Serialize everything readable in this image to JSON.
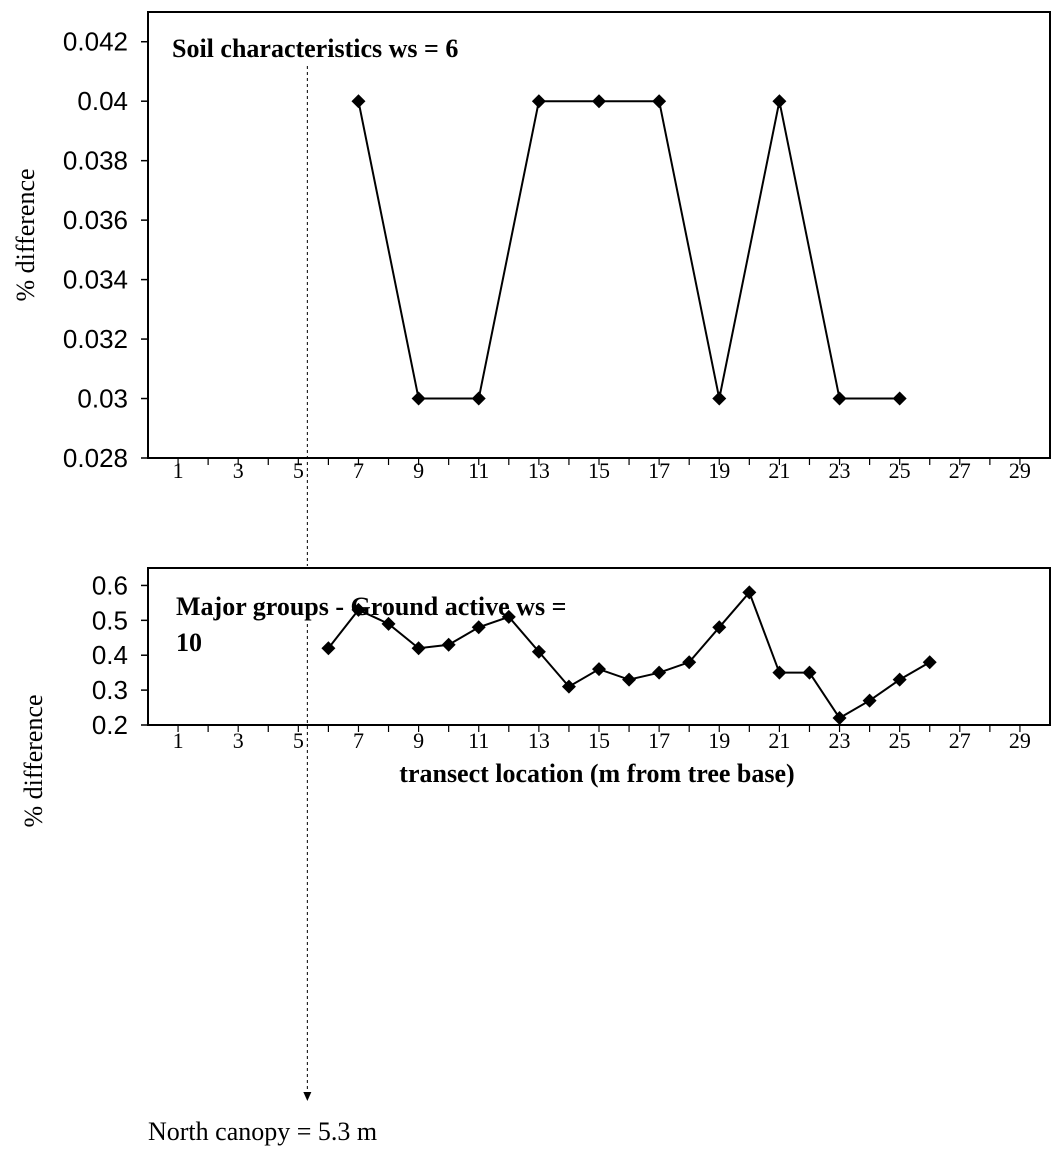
{
  "chart_data": [
    {
      "type": "line",
      "title": "Soil characteristics ws = 6",
      "ylabel": "% difference",
      "xlabel": "",
      "xlim": [
        0,
        30
      ],
      "ylim": [
        0.028,
        0.043
      ],
      "yticks": [
        "0.028",
        "0.03",
        "0.032",
        "0.034",
        "0.036",
        "0.038",
        "0.04",
        "0.042"
      ],
      "xticks": [
        "1",
        "3",
        "5",
        "7",
        "9",
        "11",
        "13",
        "15",
        "17",
        "19",
        "21",
        "23",
        "25",
        "27",
        "29"
      ],
      "series": [
        {
          "x": [
            7,
            9,
            11,
            13,
            15,
            17,
            19,
            21,
            23,
            25
          ],
          "values": [
            0.04,
            0.03,
            0.03,
            0.04,
            0.04,
            0.04,
            0.03,
            0.04,
            0.03,
            0.03
          ]
        }
      ],
      "grid": false,
      "marker": "diamond",
      "color": "#000000"
    },
    {
      "type": "line",
      "title": "Major groups - Ground active  ws = 10",
      "ylabel": "% difference",
      "xlabel": "transect location (m from tree base)",
      "xlim": [
        0,
        30
      ],
      "ylim": [
        0.2,
        0.65
      ],
      "yticks": [
        "0.2",
        "0.3",
        "0.4",
        "0.5",
        "0.6"
      ],
      "xticks": [
        "1",
        "3",
        "5",
        "7",
        "9",
        "11",
        "13",
        "15",
        "17",
        "19",
        "21",
        "23",
        "25",
        "27",
        "29"
      ],
      "series": [
        {
          "x": [
            6,
            7,
            8,
            9,
            10,
            11,
            12,
            13,
            14,
            15,
            16,
            17,
            18,
            19,
            20,
            21,
            22,
            23,
            24,
            25,
            26
          ],
          "values": [
            0.42,
            0.53,
            0.49,
            0.42,
            0.43,
            0.48,
            0.51,
            0.41,
            0.31,
            0.36,
            0.33,
            0.35,
            0.38,
            0.48,
            0.58,
            0.35,
            0.35,
            0.22,
            0.27,
            0.33,
            0.38
          ]
        }
      ],
      "grid": false,
      "marker": "diamond",
      "color": "#000000"
    }
  ],
  "annotation": {
    "text": "North canopy = 5.3 m",
    "x": 5.3
  }
}
